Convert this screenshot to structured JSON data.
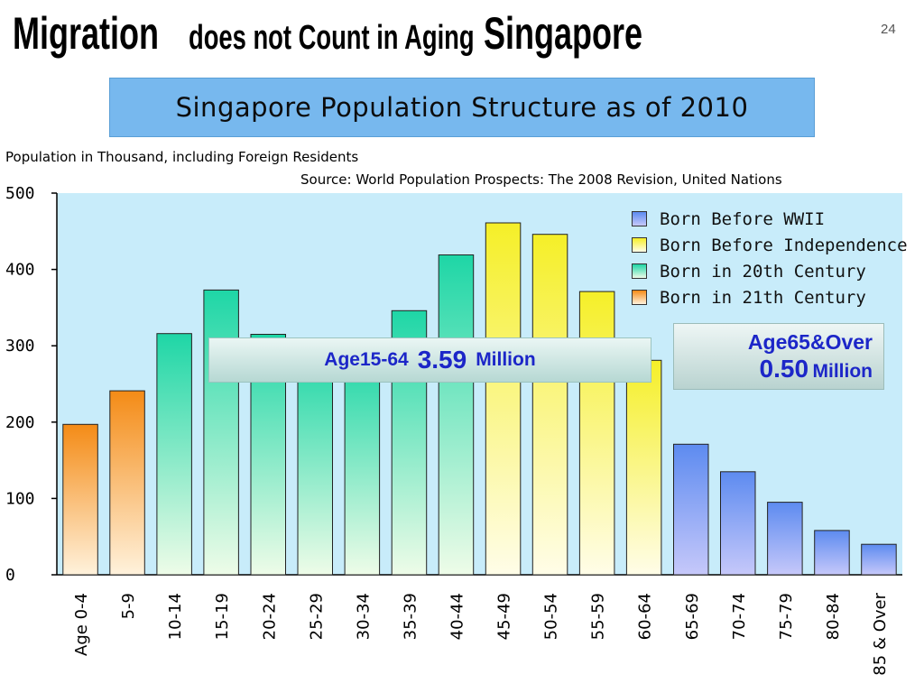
{
  "slide": {
    "title_part1": "Migration",
    "title_part2": "does not Count in Aging",
    "title_part3": "Singapore",
    "page_number": "24"
  },
  "chart_banner": "Singapore Population Structure as of 2010",
  "callouts": {
    "working_age_prefix": "Age15-64",
    "working_age_value": "3.59",
    "working_age_unit": "Million",
    "elderly_prefix": "Age65&Over",
    "elderly_value": "0.50",
    "elderly_unit": "Million"
  },
  "colors": {
    "plot_background": "#c8ecfa",
    "born_before_wwii": "#5d8bf0",
    "born_before_independence": "#f5ef28",
    "born_in_20th_century": "#1ed6a6",
    "born_in_21st_century": "#f48b16"
  },
  "chart_data": {
    "type": "bar",
    "title": "Singapore Population Structure as of 2010",
    "ylabel": "Population in Thousand, including Foreign Residents",
    "source": "Source: World Population Prospects: The 2008 Revision, United Nations",
    "ylim": [
      0,
      500
    ],
    "yticks": [
      0,
      100,
      200,
      300,
      400,
      500
    ],
    "grid": false,
    "legend_position": "top-right",
    "categories": [
      "Age 0-4",
      "5-9",
      "10-14",
      "15-19",
      "20-24",
      "25-29",
      "30-34",
      "35-39",
      "40-44",
      "45-49",
      "50-54",
      "55-59",
      "60-64",
      "65-69",
      "70-74",
      "75-79",
      "80-84",
      "85 & Over"
    ],
    "values": [
      197,
      241,
      316,
      373,
      315,
      291,
      288,
      346,
      419,
      461,
      446,
      371,
      281,
      171,
      135,
      95,
      58,
      40
    ],
    "groups": [
      "21st",
      "21st",
      "20th",
      "20th",
      "20th",
      "20th",
      "20th",
      "20th",
      "20th",
      "independence",
      "independence",
      "independence",
      "independence",
      "wwii",
      "wwii",
      "wwii",
      "wwii",
      "wwii"
    ],
    "legend": [
      {
        "key": "wwii",
        "label": "Born Before WWII"
      },
      {
        "key": "independence",
        "label": "Born Before Independence"
      },
      {
        "key": "20th",
        "label": "Born in 20th Century"
      },
      {
        "key": "21st",
        "label": "Born in 21th Century"
      }
    ]
  }
}
